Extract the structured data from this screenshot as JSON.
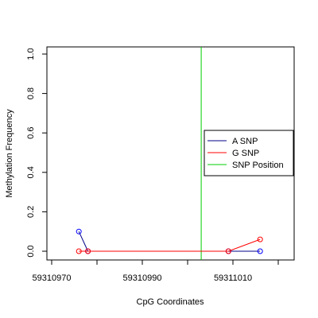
{
  "chart_data": {
    "type": "line",
    "title": "",
    "xlabel": "CpG Coordinates",
    "ylabel": "Methylation Frequency",
    "xlim": [
      59310969,
      59311021
    ],
    "ylim": [
      0,
      1.04
    ],
    "x_ticks": [
      59310970,
      59310990,
      59311010
    ],
    "x_tick_labels": [
      "59310970",
      "59310990",
      "59311010"
    ],
    "y_ticks": [
      0.0,
      0.2,
      0.4,
      0.6,
      0.8,
      1.0
    ],
    "y_tick_labels": [
      "0.0",
      "0.2",
      "0.4",
      "0.6",
      "0.8",
      "1.0"
    ],
    "grid": false,
    "legend": {
      "placement": "right",
      "entries": [
        {
          "label": "A SNP",
          "color": "#00008b"
        },
        {
          "label": "G SNP",
          "color": "#ff0000"
        },
        {
          "label": "SNP Position",
          "color": "#00cc00"
        }
      ]
    },
    "snp_position": 59311003,
    "series": [
      {
        "name": "A SNP",
        "color": "#0000ff",
        "line_color": "#00008b",
        "x": [
          59310976,
          59310978,
          59311009,
          59311016
        ],
        "y": [
          0.1,
          0.0,
          0.0,
          0.0
        ]
      },
      {
        "name": "G SNP",
        "color": "#ff0000",
        "line_color": "#ff0000",
        "x": [
          59310976,
          59310978,
          59311009,
          59311016
        ],
        "y": [
          0.0,
          0.0,
          0.0,
          0.06
        ]
      }
    ]
  }
}
